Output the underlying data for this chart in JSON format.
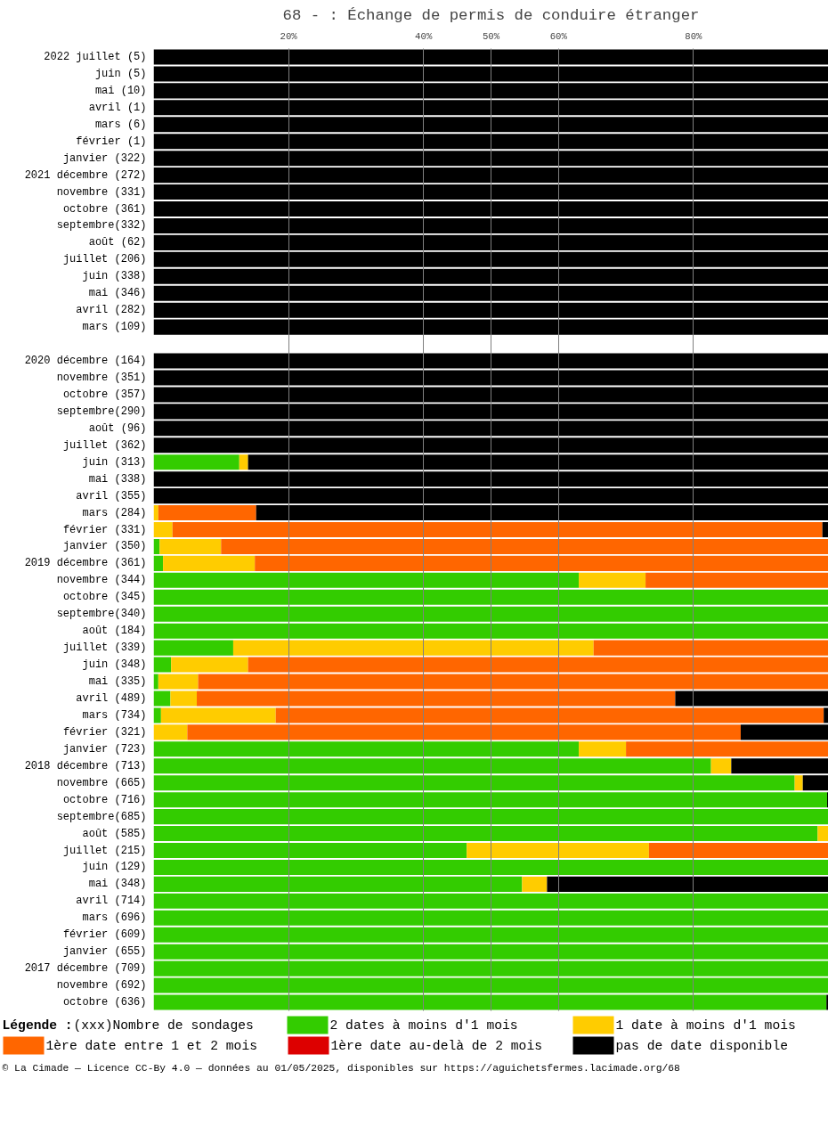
{
  "chart_data": {
    "type": "bar",
    "orientation": "horizontal",
    "stacked": true,
    "title": "68 - : Échange de permis de conduire étranger",
    "categories": [
      "2022 juillet (5)",
      "juin (5)",
      "mai (10)",
      "avril (1)",
      "mars (6)",
      "février (1)",
      "janvier (322)",
      "2021 décembre (272)",
      "novembre (331)",
      "octobre (361)",
      "septembre(332)",
      "août (62)",
      "juillet (206)",
      "juin (338)",
      "mai (346)",
      "avril (282)",
      "mars (109)",
      null,
      "2020 décembre (164)",
      "novembre (351)",
      "octobre (357)",
      "septembre(290)",
      "août (96)",
      "juillet (362)",
      "juin (313)",
      "mai (338)",
      "avril (355)",
      "mars (284)",
      "février (331)",
      "janvier (350)",
      "2019 décembre (361)",
      "novembre (344)",
      "octobre (345)",
      "septembre(340)",
      "août (184)",
      "juillet (339)",
      "juin (348)",
      "mai (335)",
      "avril (489)",
      "mars (734)",
      "février (321)",
      "janvier (723)",
      "2018 décembre (713)",
      "novembre (665)",
      "octobre (716)",
      "septembre(685)",
      "août (585)",
      "juillet (215)",
      "juin (129)",
      "mai (348)",
      "avril (714)",
      "mars (696)",
      "février (609)",
      "janvier (655)",
      "2017 décembre (709)",
      "novembre (692)",
      "octobre (636)"
    ],
    "series": [
      {
        "name": "2 dates à moins d'1 mois",
        "color": "#33cc00",
        "values": [
          0,
          0,
          0,
          0,
          0,
          0,
          0,
          0,
          0,
          0,
          0,
          0,
          0,
          0,
          0,
          0,
          0,
          null,
          0,
          0,
          0,
          0,
          0,
          0,
          12.7,
          0,
          0,
          0,
          0,
          0.9,
          1.4,
          63.0,
          100,
          100,
          100,
          11.8,
          2.6,
          0.7,
          2.5,
          1.1,
          0,
          63.0,
          82.6,
          95.0,
          99.8,
          100,
          98.4,
          46.4,
          100,
          54.6,
          100,
          100,
          100,
          100,
          100,
          100,
          99.7
        ]
      },
      {
        "name": "1 date à moins d'1 mois",
        "color": "#ffcc00",
        "values": [
          0,
          0,
          0,
          0,
          0,
          0,
          0,
          0,
          0,
          0,
          0,
          0,
          0,
          0,
          0,
          0,
          0,
          null,
          0,
          0,
          0,
          0,
          0,
          0,
          1.3,
          0,
          0,
          0.7,
          2.8,
          9.1,
          13.6,
          9.9,
          0,
          0,
          0,
          53.4,
          11.4,
          5.9,
          3.9,
          17.0,
          5.0,
          7.0,
          3.0,
          1.2,
          0,
          0,
          1.6,
          27.0,
          0,
          3.7,
          0,
          0,
          0,
          0,
          0,
          0,
          0
        ]
      },
      {
        "name": "1ère date entre 1 et 2 mois",
        "color": "#ff6600",
        "values": [
          0,
          0,
          0,
          0,
          0,
          0,
          0,
          0,
          0,
          0,
          0,
          0,
          0,
          0,
          0,
          0,
          0,
          null,
          0,
          0,
          0,
          0,
          0,
          0,
          0,
          0,
          0,
          14.5,
          96.3,
          90.0,
          85.0,
          27.1,
          0,
          0,
          0,
          34.8,
          86.0,
          93.4,
          70.9,
          81.2,
          82.0,
          30.0,
          0,
          0,
          0,
          0,
          0,
          26.6,
          0,
          0,
          0,
          0,
          0,
          0,
          0,
          0,
          0
        ]
      },
      {
        "name": "1ère date au-delà de 2 mois",
        "color": "#dd0000",
        "values": [
          0,
          0,
          0,
          0,
          0,
          0,
          0,
          0,
          0,
          0,
          0,
          0,
          0,
          0,
          0,
          0,
          0,
          null,
          0,
          0,
          0,
          0,
          0,
          0,
          0,
          0,
          0,
          0,
          0,
          0,
          0,
          0,
          0,
          0,
          0,
          0,
          0,
          0,
          0,
          0,
          0,
          0,
          0,
          0,
          0,
          0,
          0,
          0,
          0,
          0,
          0,
          0,
          0,
          0,
          0,
          0,
          0
        ]
      },
      {
        "name": "pas de date disponible",
        "color": "#000000",
        "values": [
          100,
          100,
          100,
          100,
          100,
          100,
          100,
          100,
          100,
          100,
          100,
          100,
          100,
          100,
          100,
          100,
          100,
          null,
          100,
          100,
          100,
          100,
          100,
          100,
          86.0,
          100,
          100,
          84.8,
          0.9,
          0,
          0,
          0,
          0,
          0,
          0,
          0,
          0,
          0,
          22.7,
          0.7,
          13.0,
          0,
          14.4,
          3.8,
          0.2,
          0,
          0,
          0,
          0,
          41.7,
          0,
          0,
          0,
          0,
          0,
          0,
          0.3
        ]
      }
    ],
    "xlim": [
      0,
      100
    ],
    "xticks": [
      {
        "value": 20,
        "label": "20%"
      },
      {
        "value": 40,
        "label": "40%"
      },
      {
        "value": 50,
        "label": "50%"
      },
      {
        "value": 60,
        "label": "60%"
      },
      {
        "value": 80,
        "label": "80%"
      }
    ],
    "grid": "x",
    "legend": "bottom",
    "legend_title": "Légende :",
    "annotations": [
      "(xxx)Nombre de sondages",
      "© La Cimade — Licence CC-By 4.0 — données au 01/05/2025, disponibles sur https://aguichetsfermes.lacimade.org/68"
    ]
  }
}
